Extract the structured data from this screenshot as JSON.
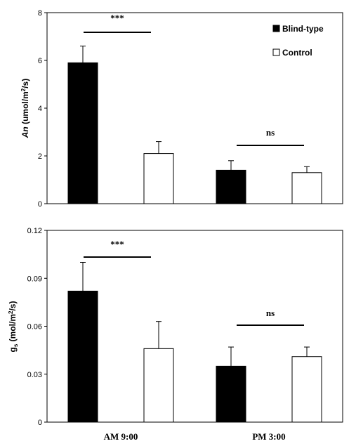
{
  "chart_data": [
    {
      "type": "bar",
      "ylabel_italic": "An",
      "ylabel_rest": " (umol/m",
      "ylabel_sup": "2",
      "ylabel_end": "/s)",
      "ylim": [
        0,
        8
      ],
      "yticks": [
        "0",
        "2",
        "4",
        "6",
        "8"
      ],
      "categories": [
        "AM 9:00",
        "PM 3:00"
      ],
      "legend_position": "top-right",
      "series": [
        {
          "name": "Blind-type",
          "color": "#000000",
          "values": [
            5.9,
            1.4
          ],
          "errors": [
            0.7,
            0.4
          ]
        },
        {
          "name": "Control",
          "color": "#ffffff",
          "values": [
            2.1,
            1.3
          ],
          "errors": [
            0.5,
            0.25
          ]
        }
      ],
      "significance": [
        "***",
        "ns"
      ]
    },
    {
      "type": "bar",
      "ylabel_main": "g",
      "ylabel_sub": "s",
      "ylabel_rest": " (mol/m",
      "ylabel_sup": "2",
      "ylabel_end": "/s)",
      "ylim": [
        0,
        0.12
      ],
      "yticks": [
        "0",
        "0.03",
        "0.06",
        "0.09",
        "0.12"
      ],
      "categories": [
        "AM 9:00",
        "PM 3:00"
      ],
      "series": [
        {
          "name": "Blind-type",
          "color": "#000000",
          "values": [
            0.082,
            0.035
          ],
          "errors": [
            0.018,
            0.012
          ]
        },
        {
          "name": "Control",
          "color": "#ffffff",
          "values": [
            0.046,
            0.041
          ],
          "errors": [
            0.017,
            0.006
          ]
        }
      ],
      "significance": [
        "***",
        "ns"
      ]
    }
  ]
}
